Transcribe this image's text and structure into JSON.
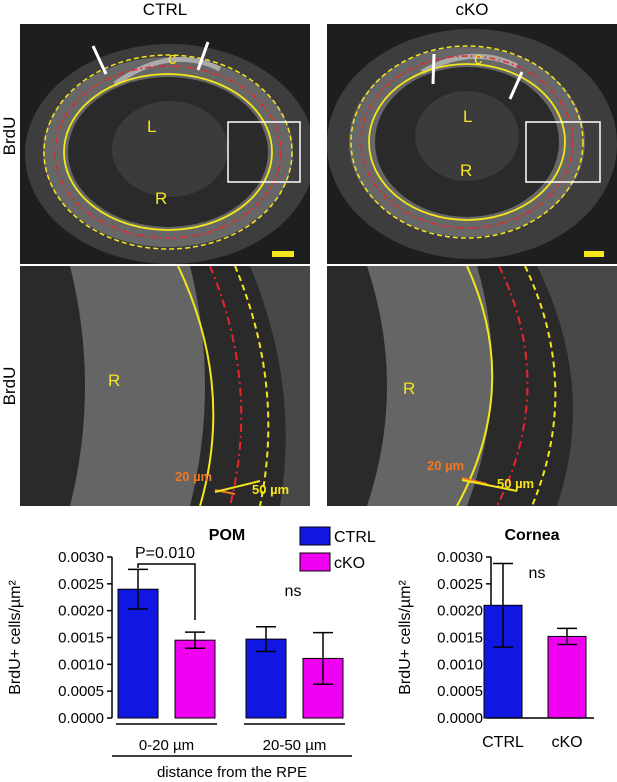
{
  "figure": {
    "columns": [
      "CTRL",
      "cKO"
    ],
    "row_label": "BrdU",
    "overview_labels": {
      "cornea": "c",
      "lens": "L",
      "retina": "R"
    },
    "zoom_labels": {
      "retina": "R",
      "inner_band": "20 µm",
      "outer_band": "50 µm"
    },
    "colors": {
      "yellow": "#f5e51b",
      "red": "#e8262b",
      "orange": "#f07820",
      "white": "#ffffff"
    }
  },
  "chart_data": [
    {
      "type": "bar",
      "title": "POM",
      "ylabel": "BrdU+ cells/µm²",
      "xlabel": "distance from the RPE",
      "categories": [
        "0-20 µm",
        "20-50 µm"
      ],
      "series": [
        {
          "name": "CTRL",
          "color": "#0f17e0",
          "values": [
            0.0024,
            0.00147
          ],
          "errors": [
            0.00037,
            0.00023
          ]
        },
        {
          "name": "cKO",
          "color": "#f000f0",
          "values": [
            0.00145,
            0.00111
          ],
          "errors": [
            0.00015,
            0.00048
          ]
        }
      ],
      "ylim": [
        0,
        0.003
      ],
      "yticks": [
        "0.0000",
        "0.0005",
        "0.0010",
        "0.0015",
        "0.0020",
        "0.0025",
        "0.0030"
      ],
      "annotations": {
        "sig1": "P=0.010",
        "sig2": "ns"
      },
      "legend": "top-right"
    },
    {
      "type": "bar",
      "title": "Cornea",
      "ylabel": "BrdU+ cells/µm²",
      "categories": [
        "CTRL",
        "cKO"
      ],
      "values": [
        0.0021,
        0.00152
      ],
      "errors": [
        0.00078,
        0.00015
      ],
      "colors": [
        "#0f17e0",
        "#f000f0"
      ],
      "ylim": [
        0,
        0.003
      ],
      "yticks": [
        "0.0000",
        "0.0005",
        "0.0010",
        "0.0015",
        "0.0020",
        "0.0025",
        "0.0030"
      ],
      "annotations": {
        "sig": "ns"
      }
    }
  ]
}
